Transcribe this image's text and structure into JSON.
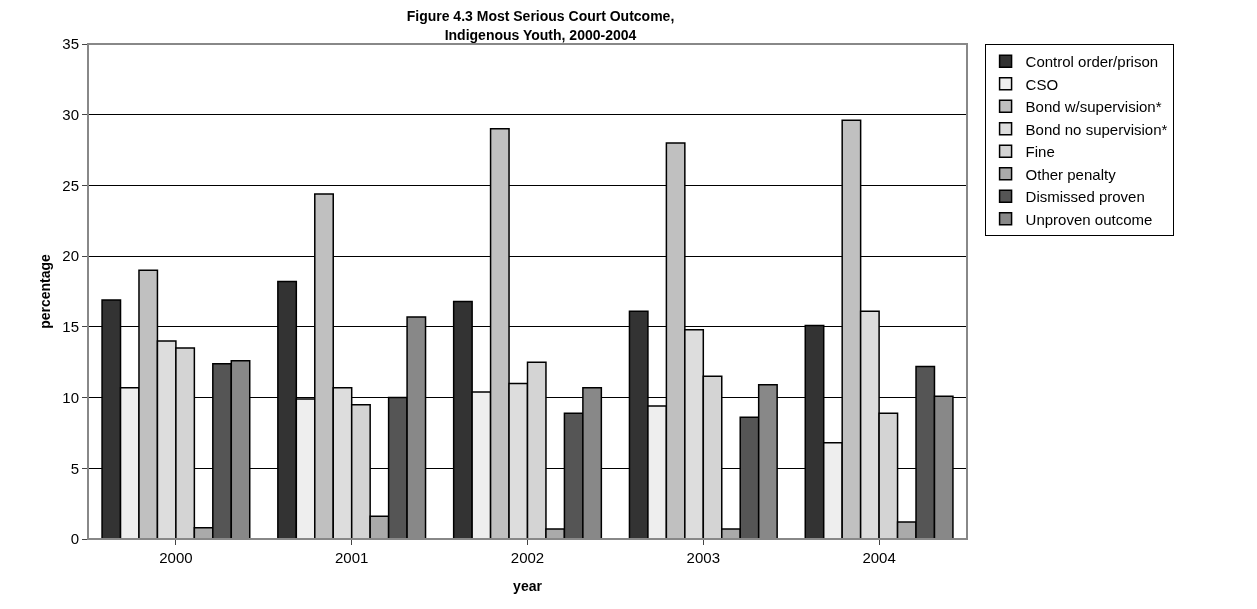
{
  "chart_data": {
    "type": "bar",
    "title": "Figure 4.3 Most Serious Court Outcome,\nIndigenous Youth, 2000-2004",
    "xlabel": "year",
    "ylabel": "percentage",
    "categories": [
      "2000",
      "2001",
      "2002",
      "2003",
      "2004"
    ],
    "series": [
      {
        "name": "Control order/prison",
        "color": "#333333",
        "values": [
          16.9,
          18.2,
          16.8,
          16.1,
          15.1
        ]
      },
      {
        "name": "CSO",
        "color": "#eeeeee",
        "values": [
          10.7,
          9.9,
          10.4,
          9.4,
          6.8
        ]
      },
      {
        "name": "Bond w/supervision*",
        "color": "#c0c0c0",
        "values": [
          19.0,
          24.4,
          29.0,
          28.0,
          29.6
        ]
      },
      {
        "name": "Bond no supervision*",
        "color": "#dddddd",
        "values": [
          14.0,
          10.7,
          11.0,
          14.8,
          16.1
        ]
      },
      {
        "name": "Fine",
        "color": "#d4d4d4",
        "values": [
          13.5,
          9.5,
          12.5,
          11.5,
          8.9
        ]
      },
      {
        "name": "Other penalty",
        "color": "#aaaaaa",
        "values": [
          0.8,
          1.6,
          0.7,
          0.7,
          1.2
        ]
      },
      {
        "name": "Dismissed proven",
        "color": "#555555",
        "values": [
          12.4,
          10.0,
          8.9,
          8.6,
          12.2
        ]
      },
      {
        "name": "Unproven outcome",
        "color": "#888888",
        "values": [
          12.6,
          15.7,
          10.7,
          10.9,
          10.1
        ]
      }
    ],
    "ylim": [
      0,
      35
    ],
    "yticks": [
      0,
      5,
      10,
      15,
      20,
      25,
      30,
      35
    ],
    "grid": "y",
    "legend": "right"
  }
}
